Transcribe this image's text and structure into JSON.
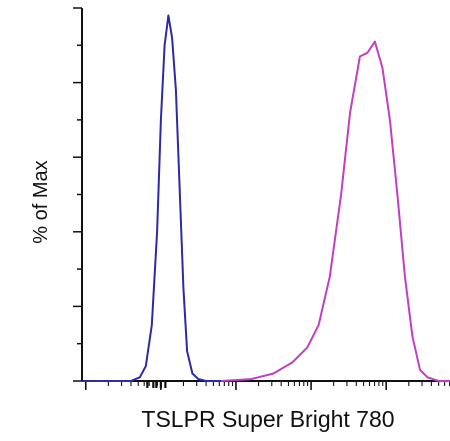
{
  "chart_data": {
    "type": "line",
    "title": "",
    "xlabel": "TSLPR Super Bright 780",
    "ylabel": "% of Max",
    "x_scale": "log",
    "xlim": [
      -1.05,
      3.85
    ],
    "ylim": [
      0,
      100
    ],
    "grid": false,
    "legend": "none",
    "series": [
      {
        "color": "#2b2ba6",
        "x": [
          -1.05,
          -0.4,
          -0.28,
          -0.2,
          -0.12,
          -0.05,
          0.0,
          0.05,
          0.1,
          0.15,
          0.2,
          0.25,
          0.3,
          0.35,
          0.42,
          0.5,
          0.6,
          0.8
        ],
        "y": [
          0,
          0,
          1,
          4,
          15,
          40,
          70,
          90,
          98,
          92,
          78,
          52,
          25,
          8,
          2,
          0.5,
          0,
          0
        ]
      },
      {
        "color": "#c040c0",
        "x": [
          0.8,
          1.2,
          1.5,
          1.75,
          1.95,
          2.1,
          2.25,
          2.4,
          2.52,
          2.65,
          2.75,
          2.85,
          2.95,
          3.05,
          3.15,
          3.25,
          3.35,
          3.45,
          3.55,
          3.7,
          3.85
        ],
        "y": [
          0,
          0.5,
          2,
          5,
          9,
          15,
          28,
          50,
          72,
          87,
          88,
          91,
          84,
          70,
          50,
          28,
          12,
          3,
          1,
          0,
          0
        ]
      }
    ]
  }
}
